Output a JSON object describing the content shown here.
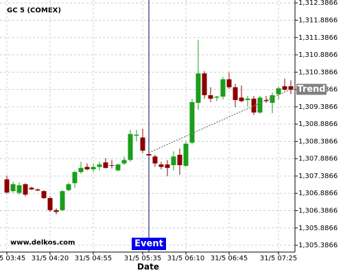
{
  "chart_data": {
    "type": "candlestick",
    "title": "GC 5 (COMEX)",
    "watermark": "www.delkos.com",
    "x_label": "Date",
    "categories": [
      "31/5 03:45",
      null,
      null,
      null,
      null,
      null,
      null,
      "31/5 04:20",
      null,
      null,
      null,
      null,
      null,
      null,
      "31/5 04:55",
      null,
      null,
      null,
      null,
      null,
      null,
      null,
      "31/5 05:35",
      null,
      null,
      null,
      null,
      null,
      null,
      "31/5 06:10",
      null,
      null,
      null,
      null,
      null,
      null,
      "31/5 06:45",
      null,
      null,
      null,
      null,
      null,
      null,
      null,
      "31/5 07:25",
      null,
      null
    ],
    "open": [
      1307.29,
      1306.95,
      1306.9,
      1307.15,
      1307.05,
      1307.0,
      1306.95,
      1306.75,
      1306.4,
      1306.4,
      1306.98,
      1307.18,
      1307.5,
      1307.65,
      1307.58,
      1307.65,
      1307.78,
      1307.7,
      1307.55,
      1307.75,
      1307.85,
      1308.55,
      1308.5,
      1308.02,
      1307.95,
      1307.72,
      1307.72,
      1307.7,
      1308.0,
      1307.68,
      1308.35,
      1309.5,
      1310.35,
      1309.72,
      1309.65,
      1309.68,
      1310.18,
      1309.95,
      1309.65,
      1309.58,
      1309.62,
      1309.22,
      1309.58,
      1309.5,
      1309.75,
      1309.98,
      1309.98
    ],
    "high": [
      1307.4,
      1307.22,
      1307.2,
      1307.18,
      1307.08,
      1307.02,
      1306.98,
      1306.8,
      1306.45,
      1306.98,
      1307.2,
      1307.55,
      1307.8,
      1307.75,
      1307.75,
      1307.8,
      1307.9,
      1307.85,
      1307.75,
      1307.95,
      1308.72,
      1308.72,
      1308.75,
      1308.06,
      1308.0,
      1307.8,
      1307.85,
      1308.1,
      1308.18,
      1308.38,
      1309.62,
      1311.32,
      1310.42,
      1309.95,
      1309.7,
      1310.25,
      1310.38,
      1310.05,
      1310.0,
      1309.7,
      1309.7,
      1309.7,
      1309.7,
      1309.8,
      1309.98,
      1310.2,
      1310.15
    ],
    "low": [
      1306.88,
      1306.9,
      1306.85,
      1306.8,
      1306.98,
      1306.95,
      1306.72,
      1306.35,
      1306.28,
      1306.38,
      1306.95,
      1307.05,
      1307.45,
      1307.55,
      1307.5,
      1307.55,
      1307.6,
      1307.6,
      1307.52,
      1307.7,
      1307.8,
      1308.4,
      1308.05,
      1307.95,
      1307.65,
      1307.58,
      1307.38,
      1307.55,
      1307.42,
      1307.65,
      1308.3,
      1309.3,
      1309.62,
      1309.52,
      1309.55,
      1309.6,
      1309.9,
      1309.38,
      1309.52,
      1309.4,
      1309.15,
      1309.18,
      1309.5,
      1309.2,
      1309.6,
      1309.85,
      1309.75
    ],
    "close": [
      1306.91,
      1307.15,
      1307.12,
      1306.85,
      1307.0,
      1306.97,
      1306.75,
      1306.4,
      1306.35,
      1306.95,
      1307.15,
      1307.5,
      1307.62,
      1307.58,
      1307.65,
      1307.72,
      1307.62,
      1307.68,
      1307.72,
      1307.85,
      1308.6,
      1308.58,
      1308.12,
      1307.98,
      1307.75,
      1307.65,
      1307.62,
      1307.95,
      1307.7,
      1308.32,
      1309.52,
      1310.35,
      1309.72,
      1309.62,
      1309.68,
      1310.18,
      1309.95,
      1309.58,
      1309.55,
      1309.62,
      1309.22,
      1309.65,
      1309.55,
      1309.72,
      1309.92,
      1309.88,
      1309.88
    ],
    "up_color": "#1a9e1a",
    "down_color": "#8b0000",
    "ylim": [
      1305.19,
      1312.47
    ],
    "yticks": [
      {
        "value": 1305.3866,
        "label": "1,305.3866"
      },
      {
        "value": 1305.8866,
        "label": "1,305.8866"
      },
      {
        "value": 1306.3866,
        "label": "1,306.3866"
      },
      {
        "value": 1306.8866,
        "label": "1,306.8866"
      },
      {
        "value": 1307.3866,
        "label": "1,307.3866"
      },
      {
        "value": 1307.8866,
        "label": "1,307.8866"
      },
      {
        "value": 1308.3866,
        "label": "1,308.3866"
      },
      {
        "value": 1308.8866,
        "label": "1,308.8866"
      },
      {
        "value": 1309.3866,
        "label": "1,309.3866"
      },
      {
        "value": 1309.8866,
        "label": "1,309.8866"
      },
      {
        "value": 1310.3866,
        "label": "1,310.3866"
      },
      {
        "value": 1310.8866,
        "label": "1,310.8866"
      },
      {
        "value": 1311.3866,
        "label": "1,311.3866"
      },
      {
        "value": 1311.8866,
        "label": "1,311.8866"
      },
      {
        "value": 1312.3866,
        "label": "1,312.3866"
      }
    ],
    "grid": true,
    "event": {
      "label": "Event",
      "index": 23,
      "color": "#0000ee"
    },
    "trend": {
      "label": "Trend",
      "start_index": 23,
      "start_value": 1308.06,
      "end_index": 46,
      "end_value": 1309.89,
      "color": "#808080"
    }
  }
}
